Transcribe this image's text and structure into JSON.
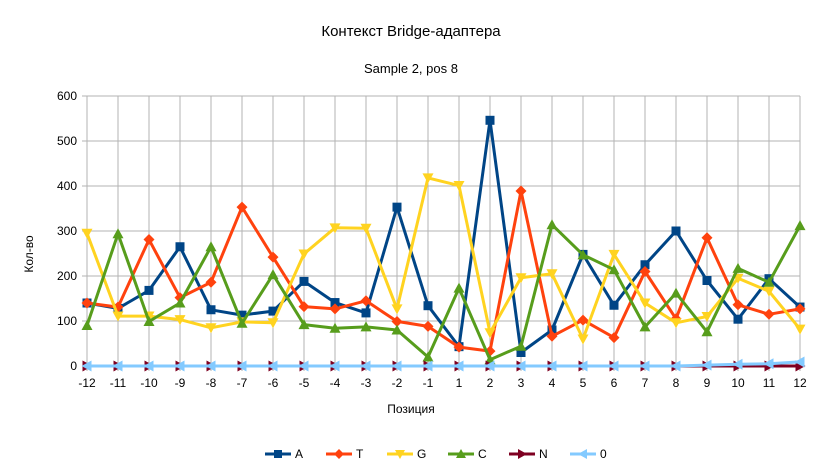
{
  "chart_data": {
    "type": "line",
    "title": "Контекст Bridge-адаптера",
    "subtitle": "Sample 2, pos 8",
    "xlabel": "Позиция",
    "ylabel": "Кол-во",
    "ylim": [
      0,
      600
    ],
    "yticks": [
      "0",
      "100",
      "200",
      "300",
      "400",
      "500",
      "600"
    ],
    "grid": true,
    "legend_position": "bottom",
    "categories": [
      "-12",
      "-11",
      "-10",
      "-9",
      "-8",
      "-7",
      "-6",
      "-5",
      "-4",
      "-3",
      "-2",
      "-1",
      "1",
      "2",
      "3",
      "4",
      "5",
      "6",
      "7",
      "8",
      "9",
      "10",
      "11",
      "12"
    ],
    "series": [
      {
        "name": "A",
        "color": "#004586",
        "marker": "square",
        "values": [
          140,
          128,
          168,
          265,
          125,
          113,
          122,
          188,
          141,
          118,
          353,
          134,
          43,
          546,
          30,
          80,
          248,
          135,
          225,
          300,
          190,
          104,
          194,
          131
        ]
      },
      {
        "name": "T",
        "color": "#ff420e",
        "marker": "diamond",
        "values": [
          140,
          131,
          281,
          152,
          186,
          353,
          242,
          132,
          127,
          145,
          99,
          88,
          42,
          33,
          389,
          66,
          102,
          63,
          210,
          105,
          285,
          136,
          115,
          127
        ]
      },
      {
        "name": "G",
        "color": "#ffd320",
        "marker": "triangle-down",
        "values": [
          295,
          111,
          111,
          103,
          85,
          98,
          96,
          249,
          307,
          306,
          127,
          418,
          401,
          74,
          196,
          205,
          60,
          248,
          140,
          96,
          110,
          195,
          166,
          82
        ]
      },
      {
        "name": "C",
        "color": "#579d1c",
        "marker": "triangle-up",
        "values": [
          90,
          294,
          99,
          140,
          265,
          95,
          203,
          92,
          84,
          87,
          80,
          20,
          173,
          14,
          44,
          314,
          247,
          214,
          87,
          162,
          76,
          217,
          186,
          312
        ]
      },
      {
        "name": "N",
        "color": "#7e0021",
        "marker": "triangle-right",
        "values": [
          0,
          0,
          0,
          0,
          0,
          0,
          0,
          0,
          0,
          0,
          0,
          0,
          0,
          0,
          0,
          0,
          0,
          0,
          0,
          0,
          0,
          0,
          0,
          0
        ]
      },
      {
        "name": "0",
        "color": "#83caff",
        "marker": "triangle-left",
        "values": [
          0,
          0,
          0,
          0,
          0,
          0,
          0,
          0,
          0,
          0,
          0,
          0,
          0,
          0,
          0,
          0,
          0,
          0,
          0,
          0,
          2,
          4,
          5,
          9
        ]
      }
    ]
  }
}
